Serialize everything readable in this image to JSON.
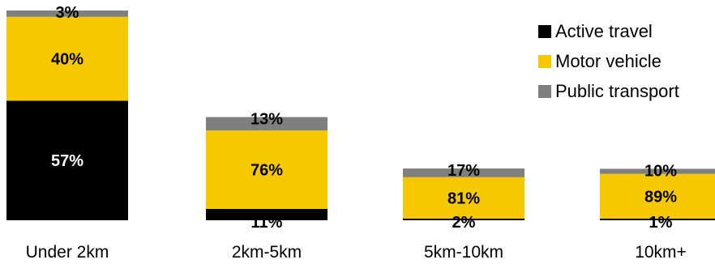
{
  "chart_data": {
    "type": "bar",
    "stacked": true,
    "categories": [
      "Under 2km",
      "2km-5km",
      "5km-10km",
      "10km+"
    ],
    "series": [
      {
        "name": "Active travel",
        "color": "#000000",
        "label_color": "#ffffff",
        "values": [
          57,
          11,
          2,
          1
        ],
        "labels": [
          "57%",
          "11%",
          "2%",
          "1%"
        ]
      },
      {
        "name": "Motor vehicle",
        "color": "#f5c800",
        "label_color": "#000000",
        "values": [
          40,
          76,
          81,
          89
        ],
        "labels": [
          "40%",
          "76%",
          "81%",
          "89%"
        ]
      },
      {
        "name": "Public transport",
        "color": "#7f7f7f",
        "label_color": "#000000",
        "values": [
          3,
          13,
          17,
          10
        ],
        "labels": [
          "3%",
          "13%",
          "17%",
          "10%"
        ]
      }
    ],
    "relative_bar_totals": [
      1.0,
      0.492,
      0.244,
      0.24
    ],
    "legend": "top-right",
    "grid": false,
    "title": "",
    "xlabel": "",
    "ylabel": ""
  }
}
